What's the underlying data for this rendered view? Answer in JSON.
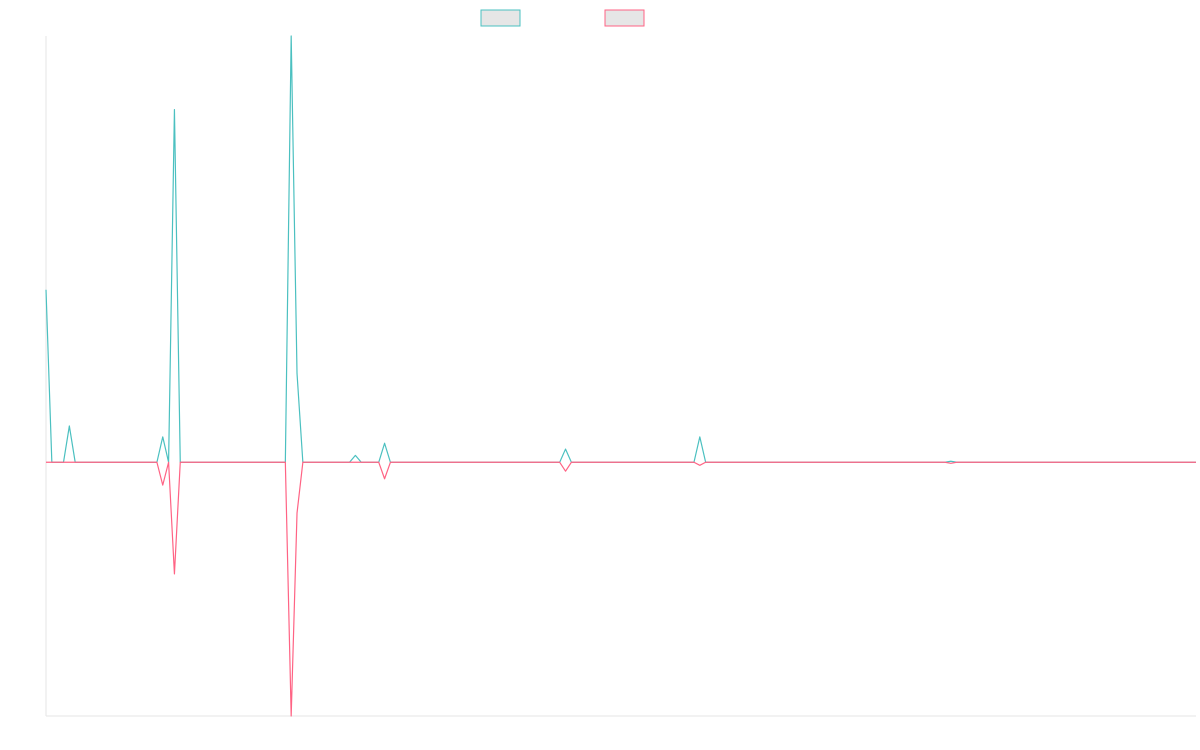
{
  "chart_data": {
    "type": "line",
    "title": "",
    "xlabel": "",
    "ylabel": "",
    "x_count": 198,
    "ylim": [
      -100,
      168
    ],
    "grid": false,
    "legend_position": "top-center",
    "series": [
      {
        "color": "#4bc0c0",
        "fill": "#e6e6e6",
        "points": [
          [
            0,
            68
          ],
          [
            1,
            0
          ],
          [
            3,
            0
          ],
          [
            4,
            14.3
          ],
          [
            5,
            0
          ],
          [
            19,
            0
          ],
          [
            20,
            10
          ],
          [
            21,
            0
          ],
          [
            22,
            139
          ],
          [
            23,
            0
          ],
          [
            41,
            0
          ],
          [
            42,
            190
          ],
          [
            43,
            35
          ],
          [
            44,
            0
          ],
          [
            52,
            0
          ],
          [
            53,
            2.7
          ],
          [
            54,
            0
          ],
          [
            57,
            0
          ],
          [
            58,
            7.5
          ],
          [
            59,
            0
          ],
          [
            88,
            0
          ],
          [
            89,
            5.2
          ],
          [
            90,
            0
          ],
          [
            111,
            0
          ],
          [
            112,
            10
          ],
          [
            113,
            0
          ],
          [
            154,
            0
          ],
          [
            155,
            0.4
          ],
          [
            156,
            0
          ],
          [
            197,
            0
          ]
        ]
      },
      {
        "color": "#ff6384",
        "fill": "#e6e6e6",
        "points": [
          [
            0,
            0
          ],
          [
            19,
            0
          ],
          [
            20,
            -9
          ],
          [
            21,
            0
          ],
          [
            22,
            -44
          ],
          [
            23,
            0
          ],
          [
            41,
            0
          ],
          [
            42,
            -100
          ],
          [
            43,
            -20
          ],
          [
            44,
            0
          ],
          [
            57,
            0
          ],
          [
            58,
            -6.5
          ],
          [
            59,
            0
          ],
          [
            88,
            0
          ],
          [
            89,
            -3.5
          ],
          [
            90,
            0
          ],
          [
            111,
            0
          ],
          [
            112,
            -1.2
          ],
          [
            113,
            0
          ],
          [
            154,
            0
          ],
          [
            155,
            -0.4
          ],
          [
            156,
            0
          ],
          [
            197,
            0
          ]
        ]
      }
    ]
  }
}
